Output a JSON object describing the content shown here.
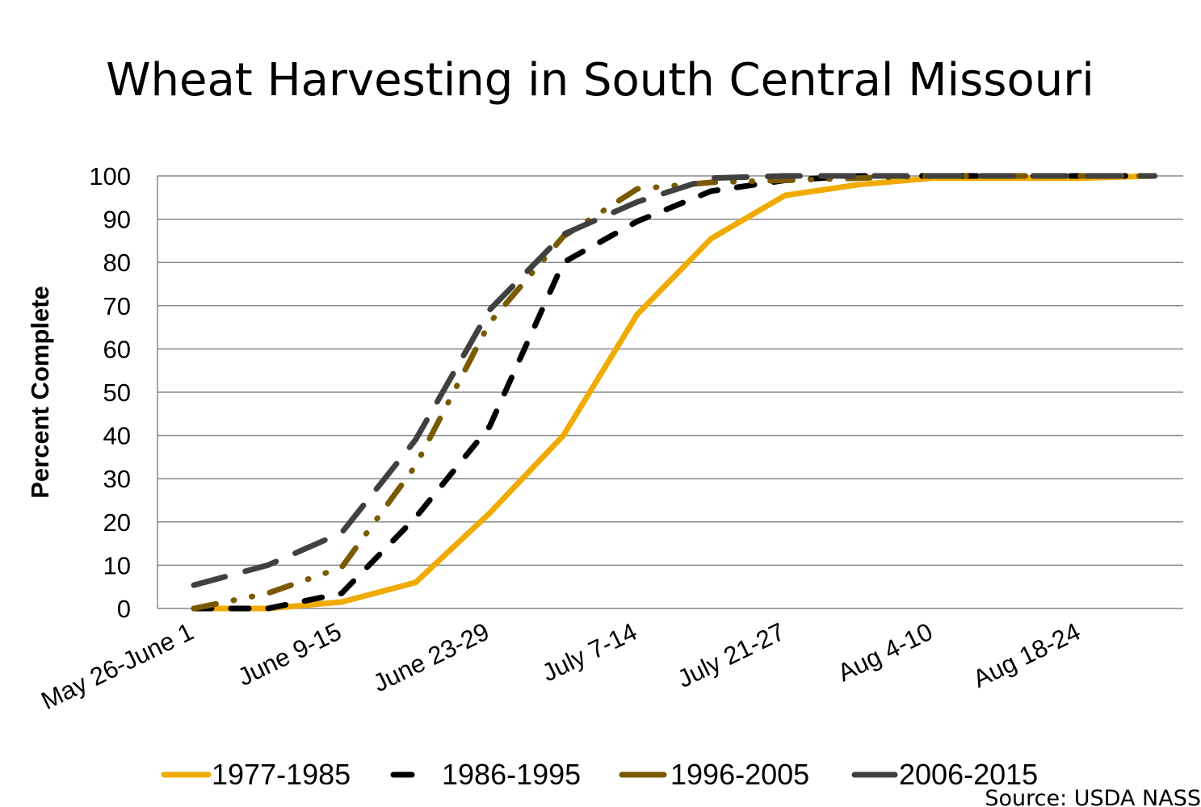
{
  "chart_data": {
    "type": "line",
    "title": "Wheat Harvesting in South Central Missouri",
    "xlabel": "",
    "ylabel": "Percent Complete",
    "ylim": [
      0,
      100
    ],
    "yticks": [
      0,
      10,
      20,
      30,
      40,
      50,
      60,
      70,
      80,
      90,
      100
    ],
    "grid": true,
    "x_tick_labels": [
      {
        "index": 0,
        "label": "May 26-June 1"
      },
      {
        "index": 2,
        "label": "June 9-15"
      },
      {
        "index": 4,
        "label": "June 23-29"
      },
      {
        "index": 6,
        "label": "July 7-14"
      },
      {
        "index": 8,
        "label": "July 21-27"
      },
      {
        "index": 10,
        "label": "Aug 4-10"
      },
      {
        "index": 12,
        "label": "Aug 18-24"
      }
    ],
    "point_count": 14,
    "series": [
      {
        "name": "1977-1985",
        "color": "#F0AB00",
        "dash": "solid",
        "values": [
          0,
          0,
          1.5,
          6,
          22,
          40,
          68,
          85.5,
          95.5,
          98,
          99.5,
          99.5,
          99.5,
          100
        ]
      },
      {
        "name": "1986-1995",
        "color": "#000000",
        "dash": "dash",
        "values": [
          0,
          0,
          3.5,
          21,
          42,
          80,
          89.5,
          96.5,
          99,
          100,
          100,
          100,
          100,
          100
        ]
      },
      {
        "name": "1996-2005",
        "color": "#7A5A00",
        "dash": "dashdot",
        "values": [
          0,
          3.5,
          9.5,
          33,
          66,
          86,
          97,
          98.5,
          99,
          99.5,
          100,
          100,
          100,
          100
        ]
      },
      {
        "name": "2006-2015",
        "color": "#404040",
        "dash": "longdash",
        "values": [
          5.4,
          10,
          17.5,
          39,
          69,
          86.5,
          94,
          99.5,
          100,
          100,
          100,
          100,
          100,
          100
        ]
      }
    ],
    "legend_position": "bottom",
    "source": "Source: USDA NASS"
  }
}
